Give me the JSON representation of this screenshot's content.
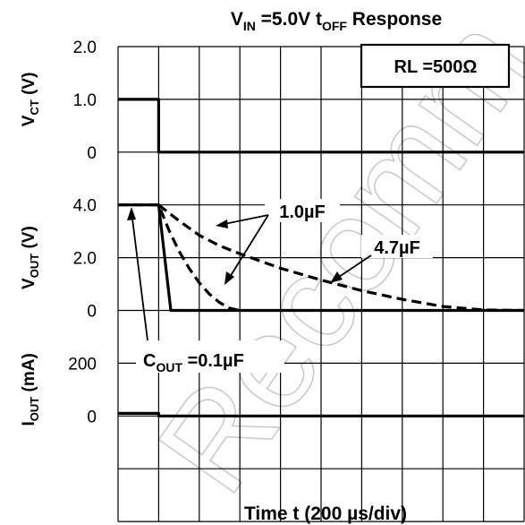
{
  "chart_data": {
    "type": "line",
    "title_parts": {
      "v": "V",
      "v_sub": "IN",
      "mid": " =5.0V t",
      "t_sub": "OFF",
      "end": " Response"
    },
    "xlabel": "Time t (200 µs/div)",
    "x_divisions": 10,
    "condition_box": "RL =500Ω",
    "watermark": "Recomm",
    "panels": [
      {
        "ylabel_main": "V",
        "ylabel_sub": "CT",
        "ylabel_unit": " (V)",
        "ticks": [
          "2.0",
          "1.0",
          "0"
        ],
        "ylim": [
          0,
          2.0
        ],
        "series": [
          {
            "style": "solid",
            "x": [
              0,
              1,
              1,
              10
            ],
            "y": [
              1.0,
              1.0,
              0,
              0
            ]
          }
        ]
      },
      {
        "ylabel_main": "V",
        "ylabel_sub": "OUT",
        "ylabel_unit": " (V)",
        "ticks": [
          "4.0",
          "2.0",
          "0"
        ],
        "ylim": [
          0,
          4.0
        ],
        "series": [
          {
            "name": "C_OUT =0.1µF",
            "style": "solid",
            "x": [
              0,
              1,
              1.3,
              10
            ],
            "y": [
              4.0,
              4.0,
              0,
              0
            ]
          },
          {
            "name": "1.0µF",
            "style": "dash",
            "x": [
              0,
              1,
              1.25,
              1.5,
              1.75,
              2,
              2.25,
              2.5,
              2.75,
              3
            ],
            "y": [
              4.0,
              4.0,
              3.05,
              2.25,
              1.6,
              1.05,
              0.62,
              0.3,
              0.08,
              0
            ]
          },
          {
            "name": "4.7µF",
            "style": "dash",
            "x": [
              1,
              1.5,
              2,
              2.5,
              3,
              4,
              5,
              6,
              7,
              8,
              9,
              10
            ],
            "y": [
              4.0,
              3.4,
              2.85,
              2.45,
              2.15,
              1.6,
              1.15,
              0.75,
              0.42,
              0.15,
              0.02,
              0
            ]
          }
        ]
      },
      {
        "ylabel_main": "I",
        "ylabel_sub": "OUT",
        "ylabel_unit": " (mA)",
        "ticks": [
          "200",
          "0"
        ],
        "ylim": [
          0,
          200
        ],
        "series": [
          {
            "style": "solid",
            "x": [
              0,
              1,
              1,
              10
            ],
            "y": [
              10,
              10,
              0,
              0
            ]
          }
        ]
      }
    ],
    "annotations": {
      "c_prefix": "C",
      "c_sub": "OUT",
      "c_value": " =0.1µF",
      "label_1uF": "1.0µF",
      "label_47uF": "4.7µF"
    }
  }
}
